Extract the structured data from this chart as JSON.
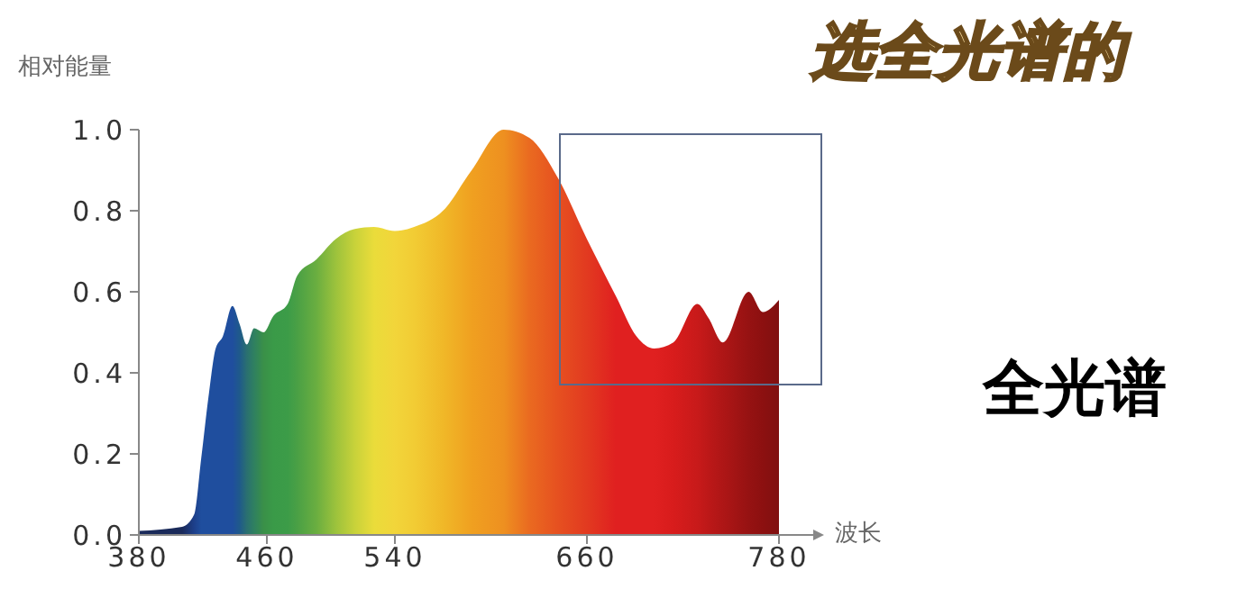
{
  "chart_data": {
    "type": "area",
    "title": "选全光谱的",
    "xlabel": "波长",
    "ylabel": "相对能量",
    "annotations": [
      "全光谱"
    ],
    "x": [
      380,
      407,
      414.5,
      419,
      423.5,
      428,
      432.5,
      438.5,
      443,
      447.5,
      452,
      458,
      464,
      473,
      479,
      491,
      503,
      515,
      527,
      540,
      552,
      570,
      588,
      608,
      624,
      642,
      660,
      678,
      691,
      702,
      714,
      729,
      736,
      745,
      761,
      770,
      780
    ],
    "series": [
      {
        "values": [
          0.01,
          0.02,
          0.05,
          0.19,
          0.34,
          0.46,
          0.49,
          0.565,
          0.52,
          0.47,
          0.51,
          0.5,
          0.54,
          0.57,
          0.64,
          0.68,
          0.73,
          0.755,
          0.76,
          0.75,
          0.76,
          0.8,
          0.9,
          1.0,
          0.98,
          0.88,
          0.73,
          0.59,
          0.49,
          0.46,
          0.475,
          0.57,
          0.535,
          0.475,
          0.6,
          0.55,
          0.58
        ],
        "colors": [
          "#1a2a5a",
          "#1a2a5a",
          "#1d3f8a",
          "#1f4e9e",
          "#1f4e9e",
          "#1f4e9e",
          "#1f4e9e",
          "#1f4e9e",
          "#1f5a8a",
          "#2a7070",
          "#2f8060",
          "#3a9048",
          "#3a9a48",
          "#3c9c48",
          "#4aa045",
          "#6aae40",
          "#9cc23c",
          "#c8d23a",
          "#eadc3a",
          "#f2d53a",
          "#f2cc34",
          "#f0b828",
          "#f0a020",
          "#ee9020",
          "#ea6a20",
          "#e65020",
          "#e23a20",
          "#e02020",
          "#e02020",
          "#e02020",
          "#d81c1c",
          "#c81a1a",
          "#bc1818",
          "#ae1616",
          "#961212",
          "#8c1010",
          "#801010"
        ]
      }
    ],
    "xlim": [
      380,
      780
    ],
    "xticks": [
      380,
      460,
      540,
      660,
      780
    ],
    "ylim": [
      0,
      1.0
    ],
    "yticks": [
      {
        "value": 0,
        "label": "0.0"
      },
      {
        "value": 0.2,
        "label": "0.2"
      },
      {
        "value": 0.4,
        "label": "0.4"
      },
      {
        "value": 0.6,
        "label": "0.6"
      },
      {
        "value": 0.8,
        "label": "0.8"
      },
      {
        "value": 1.0,
        "label": "1.0"
      }
    ],
    "grid": false,
    "legend": false
  }
}
